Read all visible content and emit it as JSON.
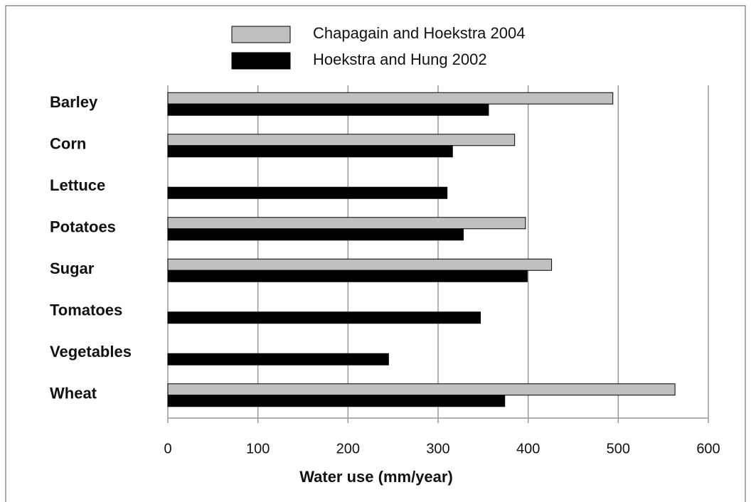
{
  "chart_data": {
    "type": "hbar",
    "xlabel": "Water use (mm/year)",
    "categories": [
      "Barley",
      "Corn",
      "Lettuce",
      "Potatoes",
      "Sugar",
      "Tomatoes",
      "Vegetables",
      "Wheat"
    ],
    "series": [
      {
        "name": "Chapagain and Hoekstra 2004",
        "color": "#c0c0c0",
        "values": [
          494,
          385,
          null,
          397,
          426,
          null,
          null,
          563
        ]
      },
      {
        "name": "Hoekstra and Hung 2002",
        "color": "#000000",
        "values": [
          356,
          316,
          310,
          328,
          399,
          347,
          245,
          374
        ]
      }
    ],
    "xlim": [
      0,
      600
    ],
    "xticks": [
      0,
      100,
      200,
      300,
      400,
      500,
      600
    ],
    "grid": true
  }
}
